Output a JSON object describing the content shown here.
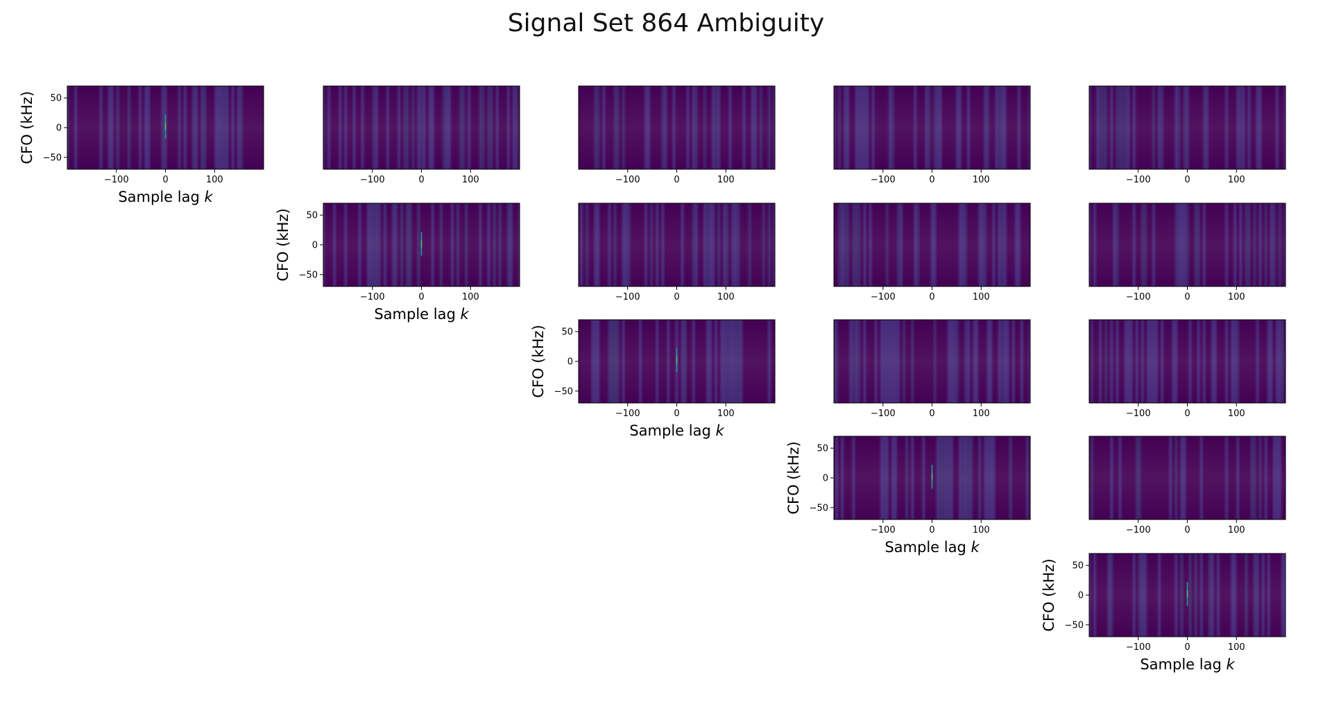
{
  "title": "Signal Set 864 Ambiguity",
  "colors": {
    "background_low": "#440154",
    "mid": "#3b528b",
    "peak": "#21918c",
    "peak_bright": "#5ec962"
  },
  "chart_data": {
    "type": "heatmap",
    "title": "Signal Set 864 Ambiguity",
    "layout": "5x5 upper-triangular grid of ambiguity maps",
    "colormap": "viridis",
    "grid": false,
    "xlabel": "Sample lag k",
    "xlabel_parts": {
      "text": "Sample lag ",
      "italic": "k"
    },
    "ylabel": "CFO (kHz)",
    "xlim": [
      -200,
      200
    ],
    "ylim": [
      -70,
      70
    ],
    "xticks": [
      -100,
      0,
      100
    ],
    "xtick_labels": [
      "−100",
      "0",
      "100"
    ],
    "yticks": [
      50,
      0,
      -50
    ],
    "ytick_labels": [
      "50",
      "0",
      "−50"
    ],
    "panels": [
      {
        "row": 0,
        "col": 0,
        "diagonal": true,
        "peak": {
          "lag": 0,
          "cfo": 0
        }
      },
      {
        "row": 0,
        "col": 1,
        "diagonal": false
      },
      {
        "row": 0,
        "col": 2,
        "diagonal": false
      },
      {
        "row": 0,
        "col": 3,
        "diagonal": false
      },
      {
        "row": 0,
        "col": 4,
        "diagonal": false
      },
      {
        "row": 1,
        "col": 1,
        "diagonal": true,
        "peak": {
          "lag": 0,
          "cfo": 0
        }
      },
      {
        "row": 1,
        "col": 2,
        "diagonal": false
      },
      {
        "row": 1,
        "col": 3,
        "diagonal": false
      },
      {
        "row": 1,
        "col": 4,
        "diagonal": false
      },
      {
        "row": 2,
        "col": 2,
        "diagonal": true,
        "peak": {
          "lag": 0,
          "cfo": 0
        }
      },
      {
        "row": 2,
        "col": 3,
        "diagonal": false
      },
      {
        "row": 2,
        "col": 4,
        "diagonal": false
      },
      {
        "row": 3,
        "col": 3,
        "diagonal": true,
        "peak": {
          "lag": 0,
          "cfo": 0
        }
      },
      {
        "row": 3,
        "col": 4,
        "diagonal": false
      },
      {
        "row": 4,
        "col": 4,
        "diagonal": true,
        "peak": {
          "lag": 0,
          "cfo": 0
        }
      }
    ]
  }
}
